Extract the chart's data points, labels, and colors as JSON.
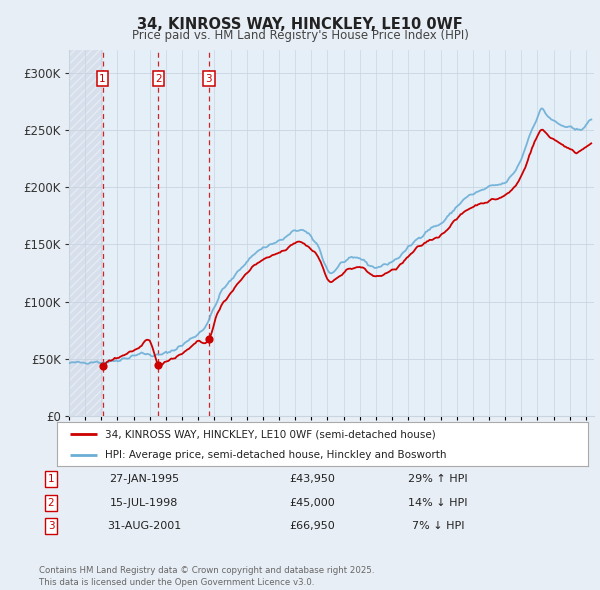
{
  "title": "34, KINROSS WAY, HINCKLEY, LE10 0WF",
  "subtitle": "Price paid vs. HM Land Registry's House Price Index (HPI)",
  "legend_line1": "34, KINROSS WAY, HINCKLEY, LE10 0WF (semi-detached house)",
  "legend_line2": "HPI: Average price, semi-detached house, Hinckley and Bosworth",
  "price_color": "#cc0000",
  "hpi_color": "#6baed6",
  "hpi_fill_color": "#c6dcf0",
  "hatch_color": "#c0c8d8",
  "background_color": "#e8eef5",
  "plot_bg_color": "#ffffff",
  "grid_color": "#c8d4e0",
  "transactions": [
    {
      "year": 1995.077,
      "price": 43950,
      "label": "1"
    },
    {
      "year": 1998.538,
      "price": 45000,
      "label": "2"
    },
    {
      "year": 2001.664,
      "price": 66950,
      "label": "3"
    }
  ],
  "transaction_annotations": [
    {
      "label": "1",
      "date": "27-JAN-1995",
      "price": "£43,950",
      "pct": "29% ↑ HPI"
    },
    {
      "label": "2",
      "date": "15-JUL-1998",
      "price": "£45,000",
      "pct": "14% ↓ HPI"
    },
    {
      "label": "3",
      "date": "31-AUG-2001",
      "price": "£66,950",
      "pct": "7% ↓ HPI"
    }
  ],
  "footer": "Contains HM Land Registry data © Crown copyright and database right 2025.\nThis data is licensed under the Open Government Licence v3.0.",
  "ylim": [
    0,
    320000
  ],
  "yticks": [
    0,
    50000,
    100000,
    150000,
    200000,
    250000,
    300000
  ],
  "xmin": 1993.0,
  "xmax": 2025.5
}
